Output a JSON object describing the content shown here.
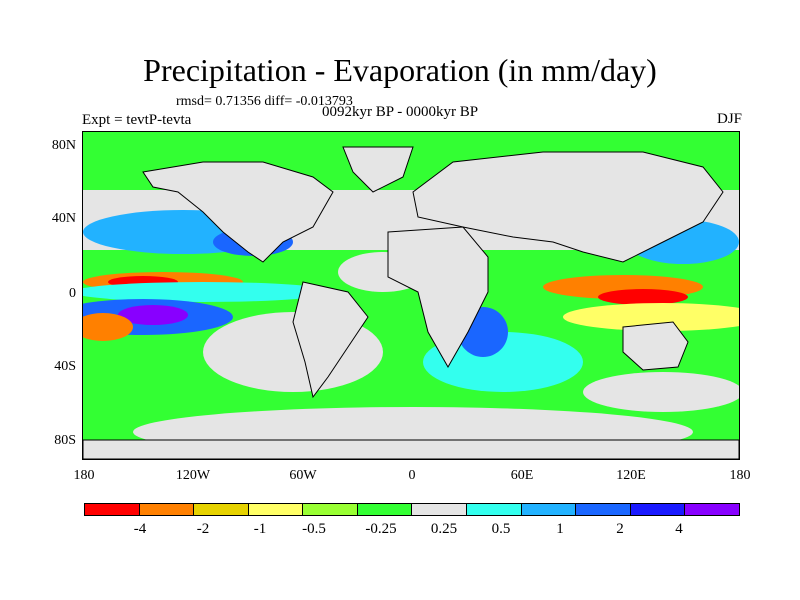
{
  "title": "Precipitation - Evaporation (in mm/day)",
  "stats": "rmsd= 0.71356 diff= -0.013793",
  "period": "0092kyr BP - 0000kyr BP",
  "experiment": "Expt = tevtP-tevta",
  "season": "DJF",
  "map": {
    "lat_labels": [
      "80N",
      "40N",
      "0",
      "40S",
      "80S"
    ],
    "lon_labels": [
      "180",
      "120W",
      "60W",
      "0",
      "60E",
      "120E",
      "180"
    ],
    "lat_range": [
      -90,
      90
    ],
    "lon_range": [
      -180,
      180
    ],
    "land_fill": "#e5e5e5",
    "coast_color": "#000000"
  },
  "colorbar": {
    "colors": [
      "#ff0000",
      "#ff8000",
      "#e6d200",
      "#ffff66",
      "#99ff33",
      "#33ff33",
      "#e5e5e5",
      "#33ffee",
      "#22b2ff",
      "#1a66ff",
      "#1a1aff",
      "#8800ff"
    ],
    "labels": [
      "-4",
      "-2",
      "-1",
      "-0.5",
      "-0.25",
      "0.25",
      "0.5",
      "1",
      "2",
      "4"
    ]
  }
}
